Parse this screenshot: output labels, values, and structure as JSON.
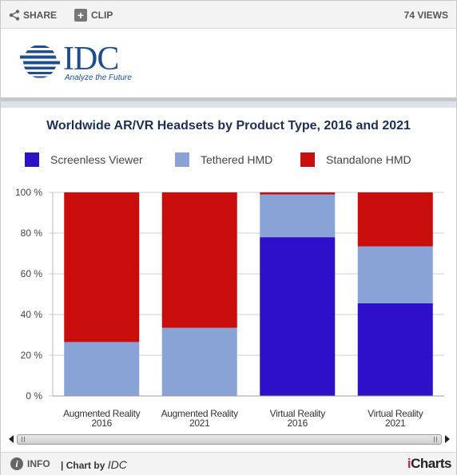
{
  "toolbar": {
    "share_label": "SHARE",
    "clip_label": "CLIP",
    "views_label": "74 VIEWS",
    "share_icon": "share-icon",
    "clip_icon": "plus-icon"
  },
  "logo": {
    "name": "IDC",
    "tagline": "Analyze the Future",
    "color": "#1f4e8f"
  },
  "footer": {
    "info_label": "INFO",
    "chart_by_prefix": "| Chart by",
    "chart_by_source": "IDC",
    "brand_i": "i",
    "brand_rest": "Charts"
  },
  "chart_data": {
    "type": "bar",
    "stacked": true,
    "title": "Worldwide AR/VR Headsets by Product Type, 2016 and 2021",
    "xlabel": "",
    "ylabel": "",
    "ylim": [
      0,
      100
    ],
    "yticks": [
      "0 %",
      "20 %",
      "40 %",
      "60 %",
      "80 %",
      "100 %"
    ],
    "ytick_values": [
      0,
      20,
      40,
      60,
      80,
      100
    ],
    "grid": true,
    "legend_position": "top",
    "categories": [
      [
        "Augmented Reality",
        "2016"
      ],
      [
        "Augmented Reality",
        "2021"
      ],
      [
        "Virtual Reality",
        "2016"
      ],
      [
        "Virtual Reality",
        "2021"
      ]
    ],
    "series": [
      {
        "name": "Screenless Viewer",
        "color": "#2e10c9",
        "values": [
          0,
          0,
          78,
          45.5
        ]
      },
      {
        "name": "Tethered HMD",
        "color": "#8aa3d6",
        "values": [
          26.5,
          33.5,
          21,
          28
        ]
      },
      {
        "name": "Standalone HMD",
        "color": "#c90c0c",
        "values": [
          73.5,
          66.5,
          1,
          26.5
        ]
      }
    ]
  }
}
